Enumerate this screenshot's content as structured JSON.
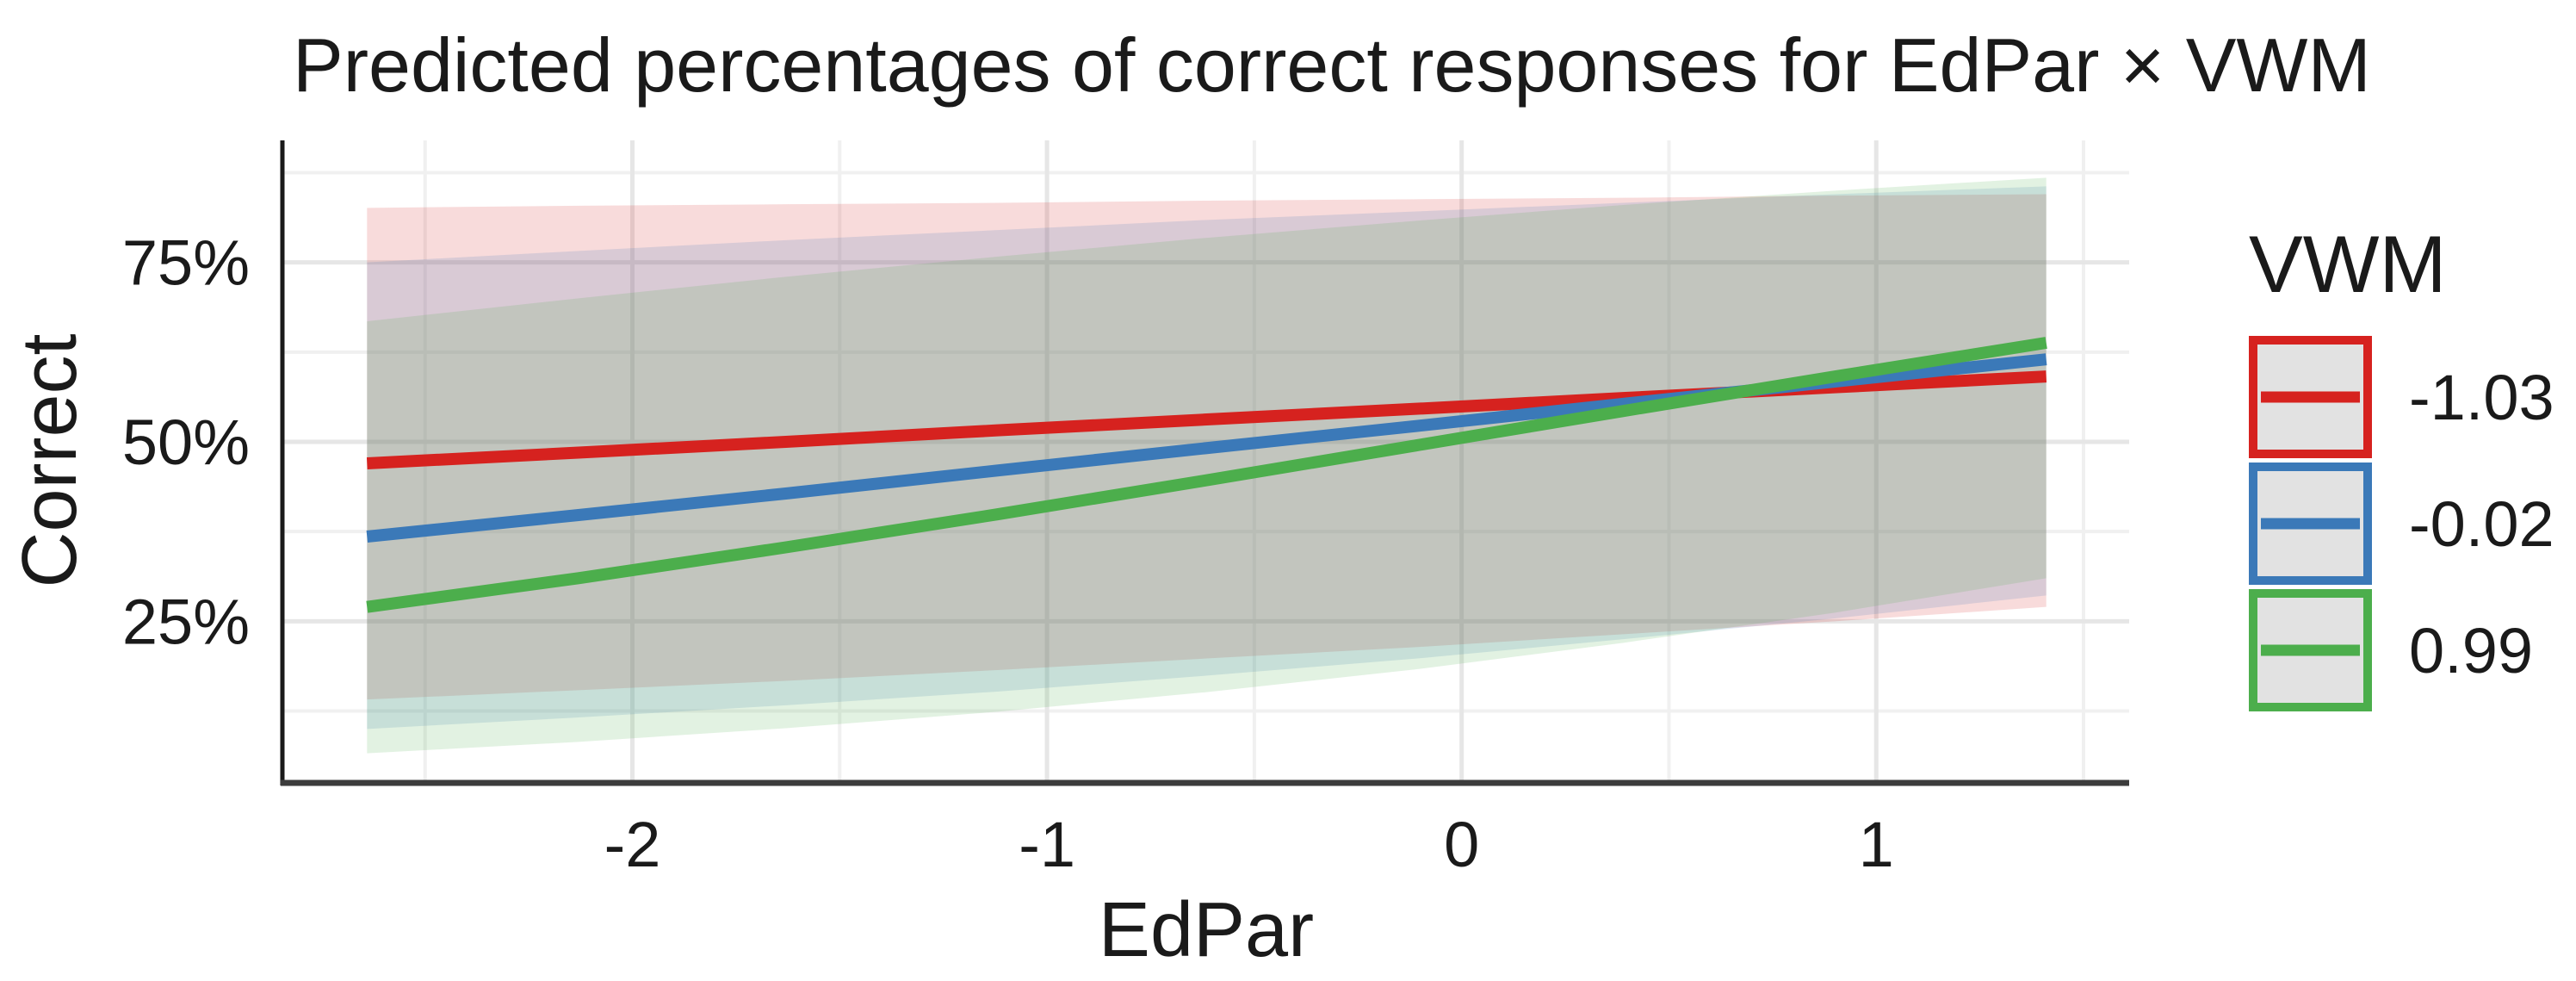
{
  "chart_data": {
    "type": "line",
    "title": "Predicted percentages of correct responses for EdPar × VWM",
    "xlabel": "EdPar",
    "ylabel": "Correct",
    "x": [
      -2.64,
      -2.13,
      -1.63,
      -1.12,
      -0.62,
      -0.11,
      0.39,
      0.9,
      1.41
    ],
    "series": [
      {
        "name": "-1.03",
        "color": "#D6221F",
        "line_pct": [
          47.0,
          48.5,
          50.0,
          51.6,
          53.1,
          54.6,
          56.1,
          57.6,
          59.1
        ],
        "ci_upper_pct": [
          82.6,
          82.9,
          83.1,
          83.3,
          83.6,
          83.8,
          84.0,
          84.3,
          84.5
        ],
        "ci_lower_pct": [
          14.1,
          15.4,
          16.7,
          18.2,
          19.8,
          21.4,
          23.2,
          25.0,
          27.0
        ]
      },
      {
        "name": "-0.02",
        "color": "#3B79B8",
        "line_pct": [
          36.8,
          39.8,
          42.8,
          46.0,
          49.1,
          52.2,
          55.3,
          58.4,
          61.5
        ],
        "ci_upper_pct": [
          75.0,
          76.6,
          78.1,
          79.5,
          80.9,
          82.1,
          83.3,
          84.5,
          85.6
        ],
        "ci_lower_pct": [
          10.0,
          11.6,
          13.3,
          15.2,
          17.4,
          19.8,
          22.5,
          25.4,
          28.6
        ]
      },
      {
        "name": "0.99",
        "color": "#4CAE4C",
        "line_pct": [
          27.0,
          31.0,
          35.3,
          39.9,
          44.6,
          49.5,
          54.3,
          59.1,
          63.8
        ],
        "ci_upper_pct": [
          66.8,
          70.0,
          73.0,
          75.8,
          78.4,
          80.8,
          83.0,
          85.0,
          86.8
        ],
        "ci_lower_pct": [
          6.6,
          8.2,
          10.1,
          12.4,
          15.1,
          18.3,
          22.0,
          26.2,
          31.0
        ]
      }
    ],
    "x_axis": {
      "tick_values": [
        -2,
        -1,
        0,
        1
      ],
      "tick_labels": [
        "-2",
        "-1",
        "0",
        "1"
      ],
      "minor_tick_values": [
        -2.5,
        -1.5,
        -0.5,
        0.5,
        1.5
      ],
      "range": [
        -2.84,
        1.61
      ]
    },
    "y_axis": {
      "tick_values": [
        25,
        50,
        75
      ],
      "tick_labels": [
        "25%",
        "50%",
        "75%"
      ],
      "minor_tick_values": [
        12.5,
        37.5,
        62.5,
        87.5
      ],
      "range": [
        2.6,
        92.0
      ]
    },
    "legend": {
      "title": "VWM",
      "position": "right",
      "key_fill": "#E2E2E2"
    },
    "ribbon_opacity": 0.16,
    "grid": true,
    "colors": {
      "grid_major": "#E6E6E6",
      "grid_minor": "#F0F0F0",
      "y_axis_line": "#1A1A1A",
      "x_axis_line": "#3C3C3C",
      "text": "#1A1A1A"
    }
  }
}
